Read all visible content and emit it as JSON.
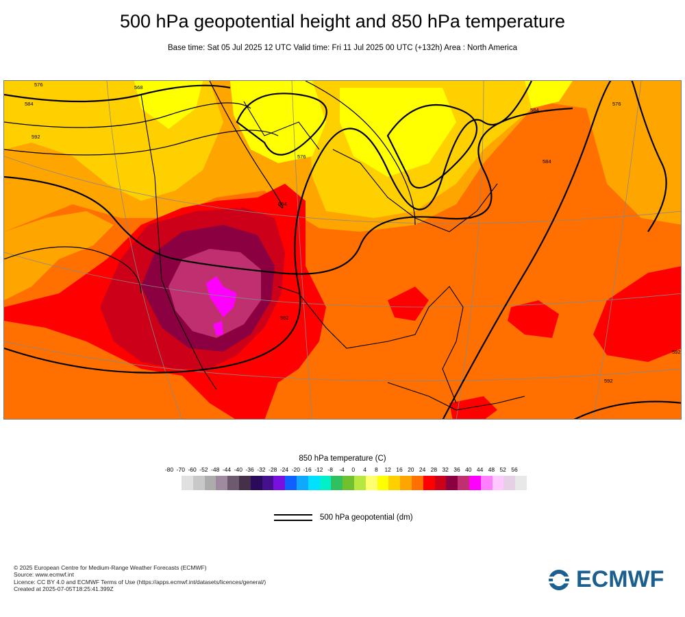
{
  "header": {
    "title": "500 hPa geopotential height and 850 hPa temperature",
    "subtitle": "Base time: Sat 05 Jul 2025 12 UTC Valid time: Fri 11 Jul 2025 00 UTC (+132h) Area : North America"
  },
  "map": {
    "contour_labels": [
      "576",
      "584",
      "568",
      "592",
      "576",
      "584",
      "592",
      "584",
      "576",
      "584",
      "592",
      "592"
    ]
  },
  "colorbar": {
    "title": "850 hPa temperature (C)",
    "ticks": [
      "-80",
      "-70",
      "-60",
      "-52",
      "-48",
      "-44",
      "-40",
      "-36",
      "-32",
      "-28",
      "-24",
      "-20",
      "-16",
      "-12",
      "-8",
      "-4",
      "0",
      "4",
      "8",
      "12",
      "16",
      "20",
      "24",
      "28",
      "32",
      "36",
      "40",
      "44",
      "48",
      "52",
      "56"
    ],
    "colors": [
      "#e0e0e0",
      "#c8c8c8",
      "#acacac",
      "#a08aa0",
      "#6e5a6e",
      "#45304a",
      "#2a0a5a",
      "#45108c",
      "#7a10e0",
      "#1060ff",
      "#10a8ff",
      "#00e0ff",
      "#00f0c8",
      "#30c060",
      "#70c030",
      "#b8e840",
      "#ffff70",
      "#ffff00",
      "#ffd000",
      "#ffa500",
      "#ff7000",
      "#ff0000",
      "#cc0018",
      "#8b0040",
      "#c03070",
      "#ff00ff",
      "#ff80ff",
      "#ffc8ff",
      "#e6d0e6",
      "#e8e8e8"
    ]
  },
  "legend": {
    "label": "500 hPa geopotential (dm)"
  },
  "footer": {
    "lines": [
      "© 2025 European Centre for Medium-Range Weather Forecasts (ECMWF)",
      "Source: www.ecmwf.int",
      "Licence: CC BY 4.0 and ECMWF Terms of Use (https://apps.ecmwf.int/datasets/licences/general/)",
      "Created at 2025-07-05T18:25:41.399Z"
    ]
  },
  "logo": {
    "text": "ECMWF",
    "color": "#1b5f8e"
  }
}
